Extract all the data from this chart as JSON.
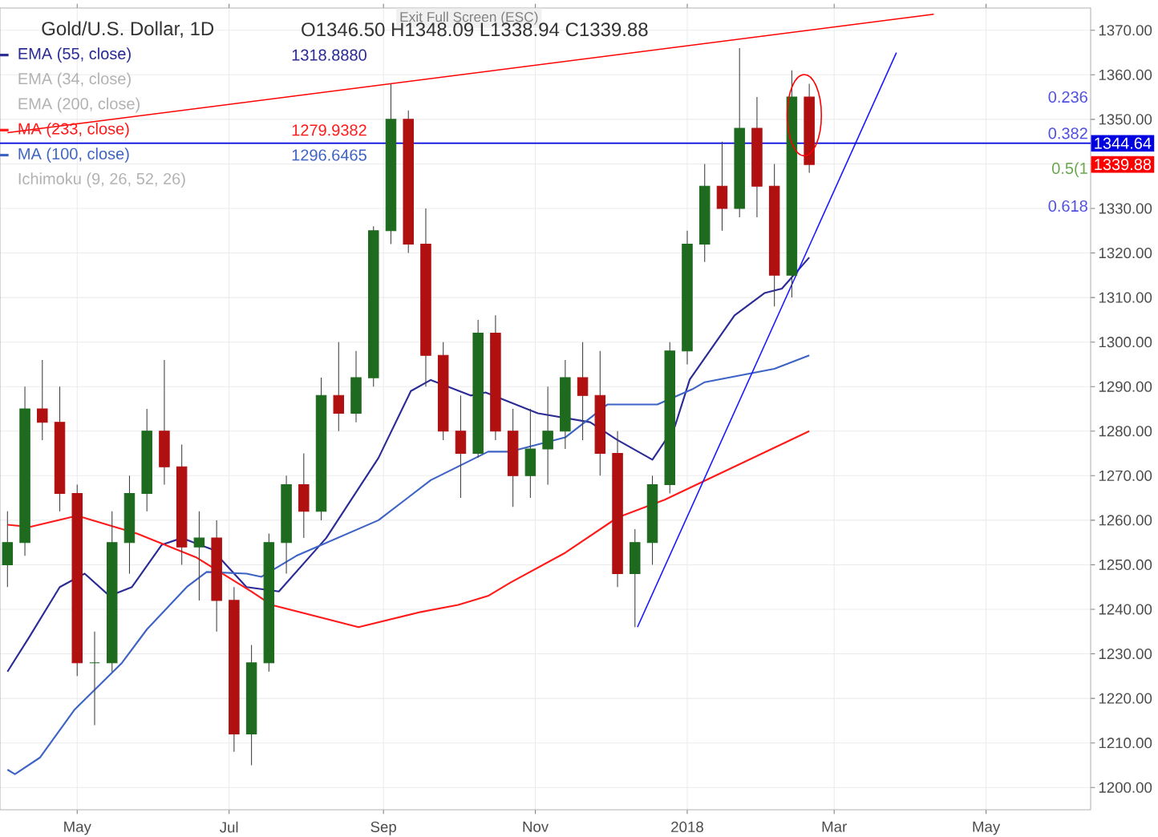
{
  "chart_data": {
    "type": "candlestick",
    "title": "Gold/U.S. Dollar, 1D",
    "subtitle": "O1346.50 H1348.09 L1338.94 C1339.88",
    "x": [
      "2017-04-03",
      "2017-04-10",
      "2017-04-17",
      "2017-04-24",
      "2017-05-01",
      "2017-05-08",
      "2017-05-15",
      "2017-05-22",
      "2017-05-29",
      "2017-06-05",
      "2017-06-12",
      "2017-06-19",
      "2017-06-26",
      "2017-07-03",
      "2017-07-10",
      "2017-07-17",
      "2017-07-24",
      "2017-07-31",
      "2017-08-07",
      "2017-08-14",
      "2017-08-21",
      "2017-08-28",
      "2017-09-04",
      "2017-09-11",
      "2017-09-18",
      "2017-09-25",
      "2017-10-02",
      "2017-10-09",
      "2017-10-16",
      "2017-10-23",
      "2017-10-30",
      "2017-11-06",
      "2017-11-13",
      "2017-11-20",
      "2017-11-27",
      "2017-12-04",
      "2017-12-11",
      "2017-12-18",
      "2017-12-25",
      "2018-01-01",
      "2018-01-08",
      "2018-01-15",
      "2018-01-22",
      "2018-01-29",
      "2018-02-05",
      "2018-02-12",
      "2018-02-19"
    ],
    "ohlc": [
      [
        1250,
        1262,
        1245,
        1255
      ],
      [
        1255,
        1290,
        1252,
        1285
      ],
      [
        1285,
        1296,
        1278,
        1282
      ],
      [
        1282,
        1290,
        1262,
        1266
      ],
      [
        1266,
        1268,
        1225,
        1228
      ],
      [
        1228,
        1235,
        1214,
        1228
      ],
      [
        1228,
        1262,
        1226,
        1255
      ],
      [
        1255,
        1270,
        1248,
        1266
      ],
      [
        1266,
        1285,
        1262,
        1280
      ],
      [
        1280,
        1296,
        1268,
        1272
      ],
      [
        1272,
        1277,
        1250,
        1254
      ],
      [
        1254,
        1262,
        1242,
        1256
      ],
      [
        1256,
        1260,
        1235,
        1242
      ],
      [
        1242,
        1245,
        1208,
        1212
      ],
      [
        1212,
        1232,
        1205,
        1228
      ],
      [
        1228,
        1257,
        1226,
        1255
      ],
      [
        1255,
        1270,
        1248,
        1268
      ],
      [
        1268,
        1275,
        1256,
        1262
      ],
      [
        1262,
        1292,
        1260,
        1288
      ],
      [
        1288,
        1300,
        1280,
        1284
      ],
      [
        1284,
        1298,
        1282,
        1292
      ],
      [
        1292,
        1326,
        1290,
        1325
      ],
      [
        1325,
        1358,
        1322,
        1350
      ],
      [
        1350,
        1352,
        1320,
        1322
      ],
      [
        1322,
        1330,
        1290,
        1297
      ],
      [
        1297,
        1300,
        1278,
        1280
      ],
      [
        1280,
        1288,
        1265,
        1275
      ],
      [
        1275,
        1305,
        1274,
        1302
      ],
      [
        1302,
        1306,
        1278,
        1280
      ],
      [
        1280,
        1285,
        1263,
        1270
      ],
      [
        1270,
        1285,
        1265,
        1276
      ],
      [
        1276,
        1290,
        1268,
        1280
      ],
      [
        1280,
        1296,
        1276,
        1292
      ],
      [
        1292,
        1300,
        1278,
        1288
      ],
      [
        1288,
        1298,
        1270,
        1275
      ],
      [
        1275,
        1280,
        1245,
        1248
      ],
      [
        1248,
        1258,
        1236,
        1255
      ],
      [
        1255,
        1270,
        1250,
        1268
      ],
      [
        1268,
        1300,
        1266,
        1298
      ],
      [
        1298,
        1325,
        1295,
        1322
      ],
      [
        1322,
        1340,
        1318,
        1335
      ],
      [
        1335,
        1345,
        1325,
        1330
      ],
      [
        1330,
        1366,
        1328,
        1348
      ],
      [
        1348,
        1355,
        1328,
        1335
      ],
      [
        1335,
        1340,
        1308,
        1315
      ],
      [
        1315,
        1361,
        1310,
        1355
      ],
      [
        1355,
        1358,
        1338,
        1339.88
      ]
    ],
    "series": [
      {
        "name": "EMA (55, close)",
        "type": "line",
        "color": "#2b2b96",
        "x": [
          "2017-04-03",
          "2017-04-12",
          "2017-04-24",
          "2017-05-04",
          "2017-05-14",
          "2017-05-23",
          "2017-06-04",
          "2017-06-12",
          "2017-06-24",
          "2017-07-08",
          "2017-07-21",
          "2017-08-09",
          "2017-08-30",
          "2017-09-12",
          "2017-09-20",
          "2017-10-06",
          "2017-10-12",
          "2017-11-02",
          "2017-11-23",
          "2017-12-04",
          "2017-12-18",
          "2017-12-27",
          "2018-01-02",
          "2018-01-20",
          "2018-02-01",
          "2018-02-08",
          "2018-02-19"
        ],
        "values": [
          1226,
          1234,
          1245,
          1248,
          1243,
          1245,
          1254.5,
          1256,
          1253.5,
          1245,
          1244,
          1256,
          1274,
          1289,
          1291.5,
          1288,
          1288.7,
          1284,
          1282,
          1278,
          1273.6,
          1281,
          1291.6,
          1306,
          1311,
          1312,
          1319
        ]
      },
      {
        "name": "MA (233, close)",
        "type": "line",
        "color": "#ff1a1a",
        "x": [
          "2017-04-03",
          "2017-04-12",
          "2017-05-01",
          "2017-05-25",
          "2017-06-18",
          "2017-07-10",
          "2017-07-18",
          "2017-08-22",
          "2017-09-16",
          "2017-10-01",
          "2017-10-13",
          "2017-10-22",
          "2017-11-13",
          "2017-12-04",
          "2017-12-23",
          "2018-02-19"
        ],
        "values": [
          1259,
          1258.5,
          1261,
          1257,
          1251.6,
          1244,
          1241,
          1236,
          1239.4,
          1241,
          1243,
          1246,
          1252.7,
          1260.6,
          1264.6,
          1280
        ]
      },
      {
        "name": "MA (100, close)",
        "type": "line",
        "color": "#3d63c4",
        "x": [
          "2017-04-03",
          "2017-04-06",
          "2017-04-16",
          "2017-04-30",
          "2017-05-19",
          "2017-05-29",
          "2017-06-14",
          "2017-06-22",
          "2017-07-08",
          "2017-07-14",
          "2017-07-28",
          "2017-08-30",
          "2017-09-20",
          "2017-10-13",
          "2017-10-22",
          "2017-11-13",
          "2017-11-30",
          "2017-12-20",
          "2018-01-03",
          "2018-01-08",
          "2018-02-05",
          "2018-02-19"
        ],
        "values": [
          1204,
          1203,
          1206.7,
          1217.5,
          1228,
          1235.5,
          1245,
          1248.4,
          1248,
          1247.3,
          1252,
          1260,
          1269,
          1275.4,
          1275.4,
          1278.6,
          1286,
          1286,
          1289.4,
          1291,
          1294,
          1297
        ]
      },
      {
        "type": "line",
        "color": "#ff0000",
        "x": [
          "2017-04-03",
          "2018-04-10"
        ],
        "values": [
          1347,
          1373.6
        ]
      },
      {
        "type": "line",
        "color": "#1a1aff",
        "x": [
          "2017-12-12",
          "2018-03-26"
        ],
        "values": [
          1236,
          1365
        ]
      }
    ],
    "ref_lines": [
      {
        "axis": "y",
        "value": 1344.64,
        "label": "1344.64",
        "color": "#0000e0"
      }
    ],
    "annotations": [
      "Exit Full Screen (ESC)",
      "1318.8880",
      "EMA (34, close)",
      "EMA (200, close)",
      "1279.9382",
      "1296.6465",
      "Ichimoku (9, 26, 52, 26)",
      "0.236",
      "0.382",
      "0.5(1",
      "0.618",
      "1339.88"
    ],
    "xlim": [
      "2017-03-31",
      "2018-06-12"
    ],
    "xticks": [
      {
        "value": "2017-05-01",
        "label": "May"
      },
      {
        "value": "2017-07-01",
        "label": "Jul"
      },
      {
        "value": "2017-09-01",
        "label": "Sep"
      },
      {
        "value": "2017-11-01",
        "label": "Nov"
      },
      {
        "value": "2018-01-01",
        "label": "2018"
      },
      {
        "value": "2018-03-01",
        "label": "Mar"
      },
      {
        "value": "2018-05-01",
        "label": "May"
      }
    ],
    "ylim": [
      1195,
      1375
    ],
    "yticks": [
      {
        "value": 1200,
        "label": "1200.00"
      },
      {
        "value": 1210,
        "label": "1210.00"
      },
      {
        "value": 1220,
        "label": "1220.00"
      },
      {
        "value": 1230,
        "label": "1230.00"
      },
      {
        "value": 1240,
        "label": "1240.00"
      },
      {
        "value": 1250,
        "label": "1250.00"
      },
      {
        "value": 1260,
        "label": "1260.00"
      },
      {
        "value": 1270,
        "label": "1270.00"
      },
      {
        "value": 1280,
        "label": "1280.00"
      },
      {
        "value": 1290,
        "label": "1290.00"
      },
      {
        "value": 1300,
        "label": "1300.00"
      },
      {
        "value": 1310,
        "label": "1310.00"
      },
      {
        "value": 1320,
        "label": "1320.00"
      },
      {
        "value": 1330,
        "label": "1330.00"
      },
      {
        "value": 1340,
        "label": null
      },
      {
        "value": 1350,
        "label": "1350.00"
      },
      {
        "value": 1360,
        "label": "1360.00"
      },
      {
        "value": 1370,
        "label": "1370.00"
      }
    ],
    "grid": true,
    "legend": "top left"
  }
}
